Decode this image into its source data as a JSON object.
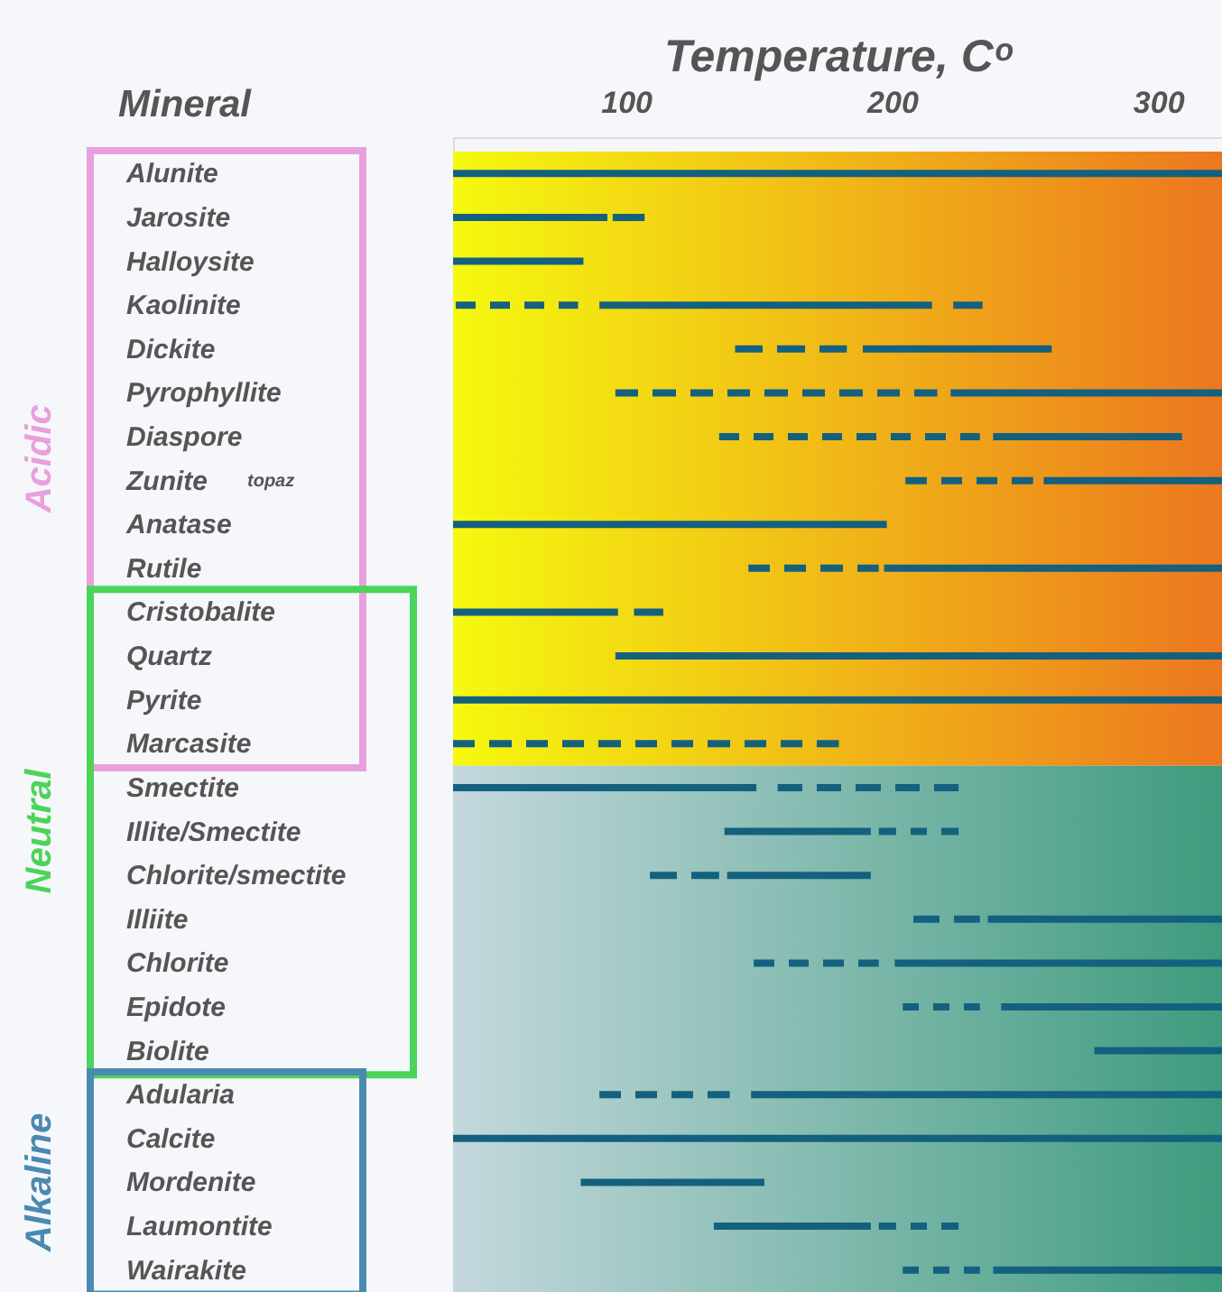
{
  "chart_data": {
    "type": "bar",
    "orientation": "horizontal",
    "xlabel": "Temperature, Cᵒ",
    "ylabel": "Mineral",
    "categories": [
      "Alunite",
      "Jarosite",
      "Halloysite",
      "Kaolinite",
      "Dickite",
      "Pyrophyllite",
      "Diaspore",
      "Zunite",
      "Anatase",
      "Rutile",
      "Cristobalite",
      "Quartz",
      "Pyrite",
      "Marcasite",
      "Smectite",
      "Illite/Smectite",
      "Chlorite/smectite",
      "Illiite",
      "Chlorite",
      "Epidote",
      "Biolite",
      "Adularia",
      "Calcite",
      "Mordenite",
      "Laumontite",
      "Wairakite"
    ],
    "series": [
      {
        "color": "#14607f",
        "line_style": "dashed",
        "base": [
          null,
          null,
          null,
          36,
          141,
          96,
          135,
          205,
          null,
          146,
          null,
          null,
          null,
          35,
          null,
          null,
          109,
          208,
          148,
          204,
          null,
          90,
          null,
          null,
          null,
          204
        ],
        "values": [
          null,
          null,
          null,
          46,
          42,
          121,
          98,
          48,
          null,
          49,
          null,
          null,
          null,
          145,
          null,
          null,
          26,
          25,
          47,
          29,
          null,
          49,
          null,
          null,
          null,
          29
        ]
      },
      {
        "color": "#14607f",
        "line_style": "solid",
        "base": [
          35,
          35,
          35,
          90,
          189,
          222,
          238,
          257,
          35,
          197,
          35,
          96,
          35,
          null,
          35,
          137,
          138,
          236,
          201,
          241,
          276,
          147,
          35,
          83,
          133,
          238
        ],
        "values": [
          289,
          58,
          49,
          125,
          71,
          102,
          71,
          67,
          163,
          127,
          62,
          228,
          289,
          null,
          114,
          55,
          54,
          88,
          123,
          83,
          48,
          177,
          289,
          69,
          59,
          86
        ]
      },
      {
        "color": "#14607f",
        "line_style": "dashed",
        "base": [
          null,
          95,
          null,
          223,
          null,
          null,
          null,
          null,
          null,
          null,
          103,
          null,
          null,
          null,
          157,
          195,
          null,
          null,
          null,
          null,
          null,
          null,
          null,
          null,
          195,
          null
        ],
        "values": [
          null,
          12,
          null,
          11,
          null,
          null,
          null,
          null,
          null,
          null,
          11,
          null,
          null,
          null,
          68,
          30,
          null,
          null,
          null,
          null,
          null,
          null,
          null,
          null,
          30,
          null
        ]
      }
    ],
    "xlim": [
      35,
      324
    ],
    "xticks": [
      100,
      200,
      300
    ],
    "bands": [
      {
        "axis": "y",
        "from": "Alunite",
        "to": "Marcasite",
        "color": [
          "#f5f90f",
          "#ec771f"
        ]
      },
      {
        "axis": "y",
        "from": "Smectite",
        "to": "Wairakite",
        "color": [
          "#c4d8dd",
          "#3e9b7e"
        ]
      }
    ],
    "annotations": [
      "topaz",
      "Acidic",
      "Neutral",
      "Alkaline"
    ]
  }
}
